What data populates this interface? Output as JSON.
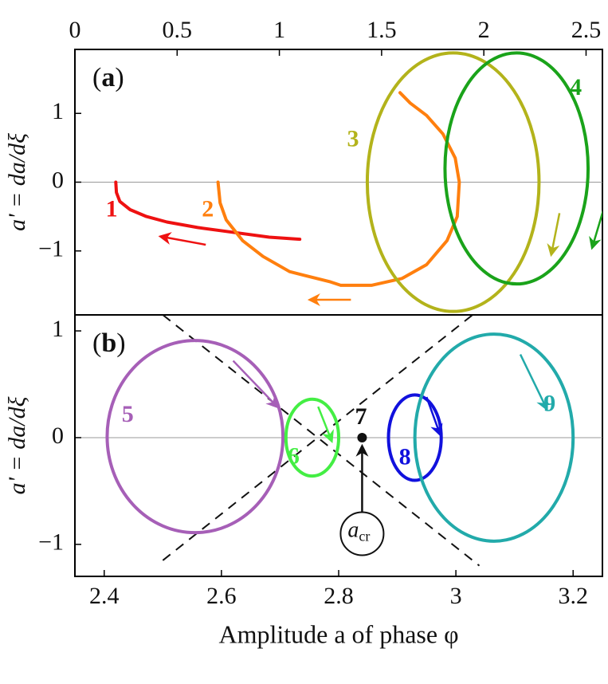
{
  "chart_data": [
    {
      "panel_label": "(a)",
      "type": "line",
      "title": "",
      "xlabel": "",
      "ylabel": "a' = da/dξ",
      "xlim": [
        0,
        2.58
      ],
      "ylim": [
        -1.93,
        1.93
      ],
      "x_axis_position": "top",
      "xticks": [
        0,
        0.5,
        1,
        1.5,
        2,
        2.5
      ],
      "xtick_labels": [
        "0",
        "0.5",
        "1",
        "1.5",
        "2",
        "2.5"
      ],
      "yticks": [
        1,
        0,
        -1
      ],
      "ytick_labels": [
        "1",
        "0",
        "−1"
      ],
      "zero_line": true,
      "series": [
        {
          "name": "1",
          "color": "#ee1111",
          "kind": "polyline",
          "points": [
            [
              0.2,
              0
            ],
            [
              0.203,
              -0.15
            ],
            [
              0.22,
              -0.28
            ],
            [
              0.27,
              -0.4
            ],
            [
              0.35,
              -0.5
            ],
            [
              0.45,
              -0.58
            ],
            [
              0.6,
              -0.66
            ],
            [
              0.8,
              -0.74
            ],
            [
              0.95,
              -0.8
            ],
            [
              1.1,
              -0.83
            ]
          ],
          "label_at": [
            0.18,
            -0.42
          ],
          "arrows": [
            {
              "from": [
                0.64,
                -0.91
              ],
              "to": [
                0.42,
                -0.79
              ]
            }
          ]
        },
        {
          "name": "2",
          "color": "#ff7f0e",
          "kind": "polyline",
          "points": [
            [
              0.7,
              0
            ],
            [
              0.71,
              -0.3
            ],
            [
              0.74,
              -0.55
            ],
            [
              0.82,
              -0.85
            ],
            [
              0.92,
              -1.08
            ],
            [
              1.05,
              -1.3
            ],
            [
              1.25,
              -1.45
            ],
            [
              1.3,
              -1.5
            ],
            [
              1.45,
              -1.5
            ],
            [
              1.6,
              -1.4
            ],
            [
              1.72,
              -1.2
            ],
            [
              1.82,
              -0.85
            ],
            [
              1.87,
              -0.5
            ],
            [
              1.88,
              0
            ],
            [
              1.86,
              0.35
            ],
            [
              1.8,
              0.7
            ],
            [
              1.72,
              0.97
            ],
            [
              1.64,
              1.15
            ],
            [
              1.59,
              1.3
            ]
          ],
          "label_at": [
            0.65,
            -0.42
          ],
          "arrows": [
            {
              "from": [
                1.35,
                -1.71
              ],
              "to": [
                1.15,
                -1.71
              ]
            }
          ]
        },
        {
          "name": "3",
          "color": "#b3b31b",
          "kind": "ellipse",
          "center": [
            1.85,
            0
          ],
          "rx": 0.42,
          "ry": 1.88,
          "label_at": [
            1.36,
            0.6
          ],
          "arrows": [
            {
              "from": [
                2.37,
                -0.45
              ],
              "to": [
                2.33,
                -1.05
              ]
            }
          ]
        },
        {
          "name": "4",
          "color": "#1aa31a",
          "kind": "ellipse",
          "center": [
            2.16,
            0.2
          ],
          "rx": 0.35,
          "ry": 1.68,
          "label_at": [
            2.45,
            1.35
          ],
          "arrows": [
            {
              "from": [
                2.6,
                -0.25
              ],
              "to": [
                2.53,
                -0.95
              ]
            }
          ]
        }
      ]
    },
    {
      "panel_label": "(b)",
      "type": "line",
      "title": "",
      "xlabel": "Amplitude a of phase φ",
      "ylabel": "a' = da/dξ",
      "xlim": [
        2.35,
        3.25
      ],
      "ylim": [
        -1.3,
        1.15
      ],
      "x_axis_position": "bottom",
      "xticks": [
        2.4,
        2.6,
        2.8,
        3,
        3.2
      ],
      "xtick_labels": [
        "2.4",
        "2.6",
        "2.8",
        "3",
        "3.2"
      ],
      "yticks": [
        1,
        0,
        -1
      ],
      "ytick_labels": [
        "1",
        "0",
        "−1"
      ],
      "zero_line": true,
      "separatrices": {
        "style": "dashed",
        "lines": [
          [
            [
              2.5,
              1.15
            ],
            [
              3.04,
              -1.2
            ]
          ],
          [
            [
              2.5,
              -1.15
            ],
            [
              3.04,
              1.2
            ]
          ]
        ]
      },
      "series": [
        {
          "name": "5",
          "color": "#a65fb7",
          "kind": "ellipse",
          "center": [
            2.555,
            0.01
          ],
          "rx": 0.15,
          "ry": 0.9,
          "label_at": [
            2.44,
            0.2
          ],
          "arrows": [
            {
              "from": [
                2.62,
                0.72
              ],
              "to": [
                2.695,
                0.29
              ]
            }
          ]
        },
        {
          "name": "6",
          "color": "#44ee44",
          "kind": "ellipse",
          "center": [
            2.755,
            0
          ],
          "rx": 0.045,
          "ry": 0.36,
          "label_at": [
            2.723,
            -0.19
          ],
          "arrows": [
            {
              "from": [
                2.765,
                0.29
              ],
              "to": [
                2.788,
                -0.03
              ]
            }
          ]
        },
        {
          "name": "7",
          "color": "#111111",
          "kind": "point",
          "points": [
            [
              2.84,
              0
            ]
          ],
          "label_at": [
            2.838,
            0.18
          ]
        },
        {
          "name": "8",
          "color": "#1111dd",
          "kind": "ellipse",
          "center": [
            2.93,
            0
          ],
          "rx": 0.045,
          "ry": 0.4,
          "label_at": [
            2.913,
            -0.2
          ],
          "arrows": [
            {
              "from": [
                2.95,
                0.38
              ],
              "to": [
                2.973,
                0.03
              ]
            }
          ]
        },
        {
          "name": "9",
          "color": "#22aaaa",
          "kind": "ellipse",
          "center": [
            3.065,
            0
          ],
          "rx": 0.135,
          "ry": 0.97,
          "label_at": [
            3.16,
            0.3
          ],
          "arrows": [
            {
              "from": [
                3.11,
                0.78
              ],
              "to": [
                3.155,
                0.27
              ]
            }
          ]
        }
      ],
      "annotations": [
        {
          "text_main": "a",
          "text_sub": "cr",
          "points_to": [
            2.84,
            0
          ],
          "box_at": [
            2.84,
            -0.9
          ]
        }
      ]
    }
  ]
}
